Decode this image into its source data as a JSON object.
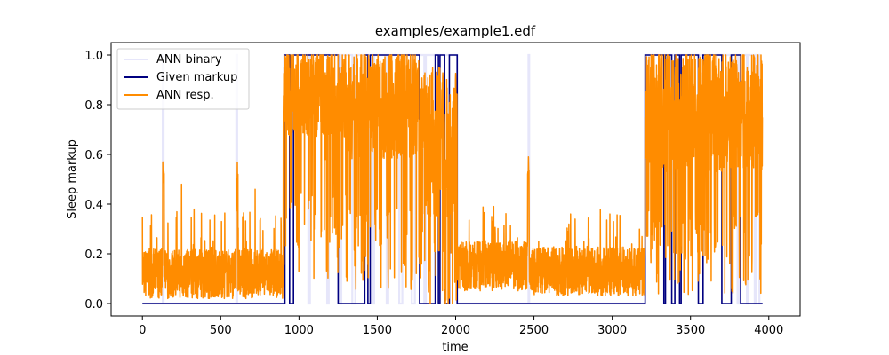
{
  "chart_data": {
    "type": "line",
    "title": "examples/example1.edf",
    "xlabel": "time",
    "ylabel": "Sleep markup",
    "xlim": [
      -200,
      4200
    ],
    "ylim": [
      -0.05,
      1.05
    ],
    "x_ticks": [
      0,
      500,
      1000,
      1500,
      2000,
      2500,
      3000,
      3500,
      4000
    ],
    "y_ticks": [
      0.0,
      0.2,
      0.4,
      0.6,
      0.8,
      1.0
    ],
    "x_tick_labels": [
      "0",
      "500",
      "1000",
      "1500",
      "2000",
      "2500",
      "3000",
      "3500",
      "4000"
    ],
    "y_tick_labels": [
      "0.0",
      "0.2",
      "0.4",
      "0.6",
      "0.8",
      "1.0"
    ],
    "grid": false,
    "legend_position": "upper-left",
    "series": [
      {
        "name": "ANN binary",
        "color": "#e6e6fa",
        "kind": "step",
        "points": [
          [
            0,
            0
          ],
          [
            130,
            0
          ],
          [
            130,
            1
          ],
          [
            135,
            1
          ],
          [
            135,
            0
          ],
          [
            600,
            0
          ],
          [
            600,
            1
          ],
          [
            605,
            1
          ],
          [
            605,
            0
          ],
          [
            905,
            0
          ],
          [
            905,
            1
          ],
          [
            1060,
            1
          ],
          [
            1060,
            0
          ],
          [
            1070,
            0
          ],
          [
            1070,
            1
          ],
          [
            1180,
            1
          ],
          [
            1180,
            0
          ],
          [
            1190,
            0
          ],
          [
            1190,
            1
          ],
          [
            1260,
            1
          ],
          [
            1260,
            0
          ],
          [
            1270,
            0
          ],
          [
            1270,
            1
          ],
          [
            1340,
            1
          ],
          [
            1340,
            0
          ],
          [
            1360,
            0
          ],
          [
            1360,
            1
          ],
          [
            1470,
            1
          ],
          [
            1470,
            0
          ],
          [
            1480,
            0
          ],
          [
            1480,
            1
          ],
          [
            1560,
            1
          ],
          [
            1560,
            0
          ],
          [
            1570,
            0
          ],
          [
            1570,
            1
          ],
          [
            1640,
            1
          ],
          [
            1640,
            0
          ],
          [
            1660,
            0
          ],
          [
            1660,
            1
          ],
          [
            1720,
            1
          ],
          [
            1720,
            0
          ],
          [
            1740,
            0
          ],
          [
            1740,
            1
          ],
          [
            1800,
            1
          ],
          [
            1800,
            0
          ],
          [
            1810,
            0
          ],
          [
            1810,
            1
          ],
          [
            2010,
            1
          ],
          [
            2010,
            0
          ],
          [
            2465,
            0
          ],
          [
            2465,
            1
          ],
          [
            2470,
            1
          ],
          [
            2470,
            0
          ],
          [
            3210,
            0
          ],
          [
            3210,
            1
          ],
          [
            3800,
            1
          ],
          [
            3800,
            0
          ],
          [
            3810,
            0
          ],
          [
            3810,
            1
          ],
          [
            3860,
            1
          ],
          [
            3860,
            0
          ],
          [
            3870,
            0
          ],
          [
            3870,
            1
          ],
          [
            3910,
            1
          ],
          [
            3910,
            0
          ],
          [
            3920,
            0
          ],
          [
            3920,
            1
          ],
          [
            3940,
            1
          ],
          [
            3940,
            0
          ],
          [
            3960,
            0
          ]
        ]
      },
      {
        "name": "Given markup",
        "color": "#000080",
        "kind": "step",
        "points": [
          [
            0,
            0
          ],
          [
            910,
            0
          ],
          [
            910,
            1
          ],
          [
            940,
            1
          ],
          [
            940,
            0
          ],
          [
            965,
            0
          ],
          [
            965,
            1
          ],
          [
            1250,
            1
          ],
          [
            1250,
            0
          ],
          [
            1420,
            0
          ],
          [
            1420,
            1
          ],
          [
            1440,
            1
          ],
          [
            1440,
            0
          ],
          [
            1455,
            0
          ],
          [
            1455,
            1
          ],
          [
            1770,
            1
          ],
          [
            1770,
            0
          ],
          [
            1870,
            0
          ],
          [
            1870,
            1
          ],
          [
            1890,
            1
          ],
          [
            1890,
            0
          ],
          [
            1900,
            0
          ],
          [
            1900,
            1
          ],
          [
            1930,
            1
          ],
          [
            1930,
            0
          ],
          [
            1960,
            0
          ],
          [
            1960,
            1
          ],
          [
            2010,
            1
          ],
          [
            2010,
            0
          ],
          [
            3210,
            0
          ],
          [
            3210,
            1
          ],
          [
            3330,
            1
          ],
          [
            3330,
            0
          ],
          [
            3340,
            0
          ],
          [
            3340,
            1
          ],
          [
            3380,
            1
          ],
          [
            3380,
            0
          ],
          [
            3400,
            0
          ],
          [
            3400,
            1
          ],
          [
            3430,
            1
          ],
          [
            3430,
            0
          ],
          [
            3440,
            0
          ],
          [
            3440,
            1
          ],
          [
            3550,
            1
          ],
          [
            3550,
            0
          ],
          [
            3580,
            0
          ],
          [
            3580,
            1
          ],
          [
            3700,
            1
          ],
          [
            3700,
            0
          ],
          [
            3760,
            0
          ],
          [
            3760,
            1
          ],
          [
            3820,
            1
          ],
          [
            3820,
            0
          ],
          [
            3960,
            0
          ]
        ]
      },
      {
        "name": "ANN resp.",
        "color": "#ff8c00",
        "kind": "line",
        "segments": [
          {
            "x0": 0,
            "x1": 130,
            "base": 0.12,
            "amp": 0.1,
            "n": 130
          },
          {
            "x0": 130,
            "x1": 140,
            "base": 0.5,
            "amp": 0.08,
            "n": 8
          },
          {
            "x0": 140,
            "x1": 600,
            "base": 0.12,
            "amp": 0.1,
            "n": 460
          },
          {
            "x0": 600,
            "x1": 610,
            "base": 0.45,
            "amp": 0.08,
            "n": 8
          },
          {
            "x0": 610,
            "x1": 900,
            "base": 0.12,
            "amp": 0.1,
            "n": 290
          },
          {
            "x0": 900,
            "x1": 1300,
            "base": 0.85,
            "amp": 0.18,
            "n": 400
          },
          {
            "x0": 1300,
            "x1": 1800,
            "base": 0.8,
            "amp": 0.22,
            "n": 500
          },
          {
            "x0": 1800,
            "x1": 2010,
            "base": 0.65,
            "amp": 0.3,
            "n": 210
          },
          {
            "x0": 2010,
            "x1": 2460,
            "base": 0.15,
            "amp": 0.1,
            "n": 450
          },
          {
            "x0": 2460,
            "x1": 2470,
            "base": 0.52,
            "amp": 0.06,
            "n": 6
          },
          {
            "x0": 2470,
            "x1": 3210,
            "base": 0.13,
            "amp": 0.1,
            "n": 740
          },
          {
            "x0": 3210,
            "x1": 3960,
            "base": 0.78,
            "amp": 0.25,
            "n": 750
          }
        ],
        "highlights": [
          [
            0,
            0.35
          ],
          [
            130,
            0.57
          ],
          [
            250,
            0.48
          ],
          [
            330,
            0.38
          ],
          [
            610,
            0.52
          ],
          [
            720,
            0.46
          ],
          [
            1060,
            0.38
          ],
          [
            1170,
            0.58
          ],
          [
            1900,
            0.62
          ],
          [
            2230,
            0.35
          ],
          [
            2465,
            0.59
          ],
          [
            3920,
            0.35
          ]
        ]
      }
    ]
  }
}
